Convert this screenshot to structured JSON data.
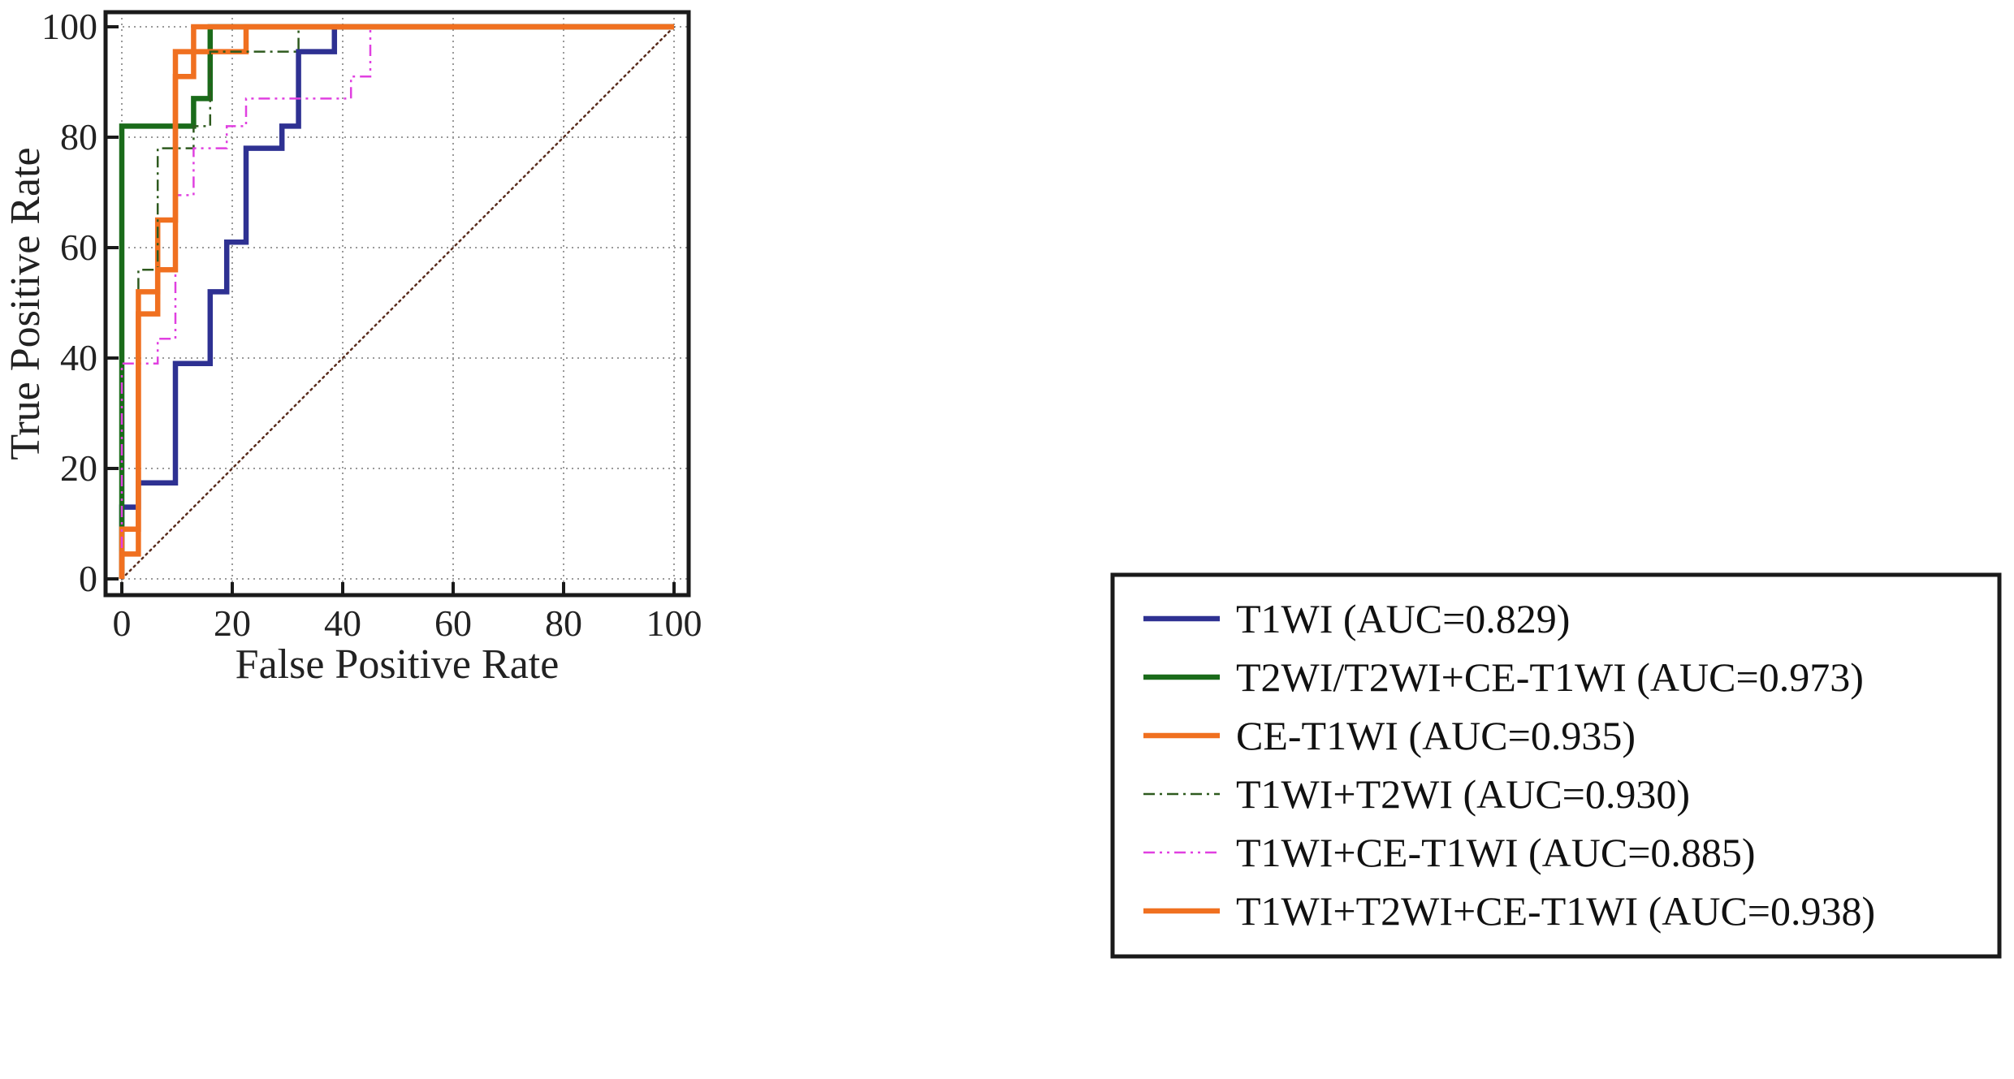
{
  "chart_data": {
    "type": "line",
    "title": "",
    "xlabel": "False Positive Rate",
    "ylabel": "True Positive Rate",
    "xlim": [
      0,
      100
    ],
    "ylim": [
      0,
      100
    ],
    "xticks": [
      0,
      20,
      40,
      60,
      80,
      100
    ],
    "yticks": [
      0,
      20,
      40,
      60,
      80,
      100
    ],
    "grid": true,
    "legend": "bottom-right",
    "diagonal": {
      "color": "#5a2d1e",
      "style": "dotted"
    },
    "series": [
      {
        "name": "T1WI (AUC=0.829)",
        "color": "#2e3192",
        "style": "solid",
        "width": "thick",
        "points": [
          [
            0,
            0
          ],
          [
            0,
            13
          ],
          [
            3,
            13
          ],
          [
            3,
            17.4
          ],
          [
            9.7,
            17.4
          ],
          [
            9.7,
            39
          ],
          [
            16,
            39
          ],
          [
            16,
            52
          ],
          [
            19,
            52
          ],
          [
            19,
            61
          ],
          [
            22.5,
            61
          ],
          [
            22.5,
            78
          ],
          [
            29,
            78
          ],
          [
            29,
            82
          ],
          [
            32,
            82
          ],
          [
            32,
            95.5
          ],
          [
            38.5,
            95.5
          ],
          [
            38.5,
            100
          ],
          [
            100,
            100
          ]
        ]
      },
      {
        "name": "T2WI/T2WI+CE-T1WI (AUC=0.973)",
        "color": "#1a6b1a",
        "style": "solid",
        "width": "thick",
        "points": [
          [
            0,
            0
          ],
          [
            0,
            82
          ],
          [
            13,
            82
          ],
          [
            13,
            87
          ],
          [
            16,
            87
          ],
          [
            16,
            100
          ],
          [
            100,
            100
          ]
        ]
      },
      {
        "name": "CE-T1WI (AUC=0.935)",
        "color": "#f07020",
        "style": "solid",
        "width": "thick",
        "points": [
          [
            0,
            0
          ],
          [
            0,
            9
          ],
          [
            3,
            9
          ],
          [
            3,
            48
          ],
          [
            6.5,
            48
          ],
          [
            6.5,
            65
          ],
          [
            9.7,
            65
          ],
          [
            9.7,
            95.5
          ],
          [
            22.5,
            95.5
          ],
          [
            22.5,
            100
          ],
          [
            100,
            100
          ]
        ]
      },
      {
        "name": "T1WI+T2WI (AUC=0.930)",
        "color": "#2e5a1e",
        "style": "dashdot",
        "width": "thin",
        "points": [
          [
            0,
            0
          ],
          [
            0,
            4.5
          ],
          [
            3,
            4.5
          ],
          [
            3,
            56
          ],
          [
            6.5,
            56
          ],
          [
            6.5,
            78
          ],
          [
            13,
            78
          ],
          [
            13,
            82
          ],
          [
            16,
            82
          ],
          [
            16,
            95.5
          ],
          [
            32,
            95.5
          ],
          [
            32,
            100
          ],
          [
            100,
            100
          ]
        ]
      },
      {
        "name": "T1WI+CE-T1WI (AUC=0.885)",
        "color": "#e040e0",
        "style": "dashdotdot",
        "width": "thin",
        "points": [
          [
            0,
            0
          ],
          [
            0,
            39
          ],
          [
            6.5,
            39
          ],
          [
            6.5,
            43.5
          ],
          [
            9.7,
            43.5
          ],
          [
            9.7,
            69.5
          ],
          [
            13,
            69.5
          ],
          [
            13,
            78
          ],
          [
            19,
            78
          ],
          [
            19,
            82
          ],
          [
            22.5,
            82
          ],
          [
            22.5,
            87
          ],
          [
            41.5,
            87
          ],
          [
            41.5,
            91
          ],
          [
            45,
            91
          ],
          [
            45,
            100
          ],
          [
            100,
            100
          ]
        ]
      },
      {
        "name": "T1WI+T2WI+CE-T1WI (AUC=0.938)",
        "color": "#f07020",
        "style": "solid",
        "width": "thick",
        "points": [
          [
            0,
            0
          ],
          [
            0,
            4.5
          ],
          [
            3,
            4.5
          ],
          [
            3,
            52
          ],
          [
            6.5,
            52
          ],
          [
            6.5,
            56
          ],
          [
            9.7,
            56
          ],
          [
            9.7,
            91
          ],
          [
            13,
            91
          ],
          [
            13,
            100
          ],
          [
            100,
            100
          ]
        ]
      }
    ]
  }
}
